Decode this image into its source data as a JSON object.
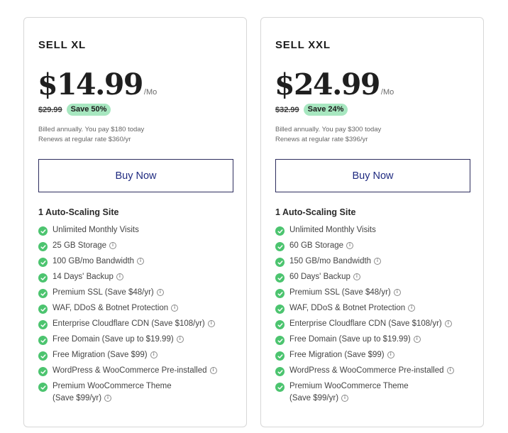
{
  "colors": {
    "accent_check": "#4cc46f",
    "badge_bg": "#a7e7c0",
    "button_text": "#1f2a80",
    "border": "#d7d7d7"
  },
  "plans": [
    {
      "name": "SELL XL",
      "price": "$14.99",
      "per": "/Mo",
      "old_price": "$29.99",
      "badge": "Save 50%",
      "billing_line1": "Billed annually. You pay $180 today",
      "billing_line2": "Renews at regular rate $360/yr",
      "buy_label": "Buy Now",
      "features_title": "1 Auto-Scaling Site",
      "features": [
        "Unlimited Monthly Visits",
        "25 GB Storage",
        "100 GB/mo Bandwidth",
        "14 Days' Backup",
        "Premium SSL (Save $48/yr)",
        "WAF, DDoS & Botnet Protection",
        "Enterprise Cloudflare CDN (Save $108/yr)",
        "Free Domain (Save up to $19.99)",
        "Free Migration (Save $99)",
        "WordPress & WooCommerce Pre-installed",
        "Premium WooCommerce Theme"
      ],
      "last_feature_line2": "(Save $99/yr)"
    },
    {
      "name": "SELL XXL",
      "price": "$24.99",
      "per": "/Mo",
      "old_price": "$32.99",
      "badge": "Save 24%",
      "billing_line1": "Billed annually. You pay $300 today",
      "billing_line2": "Renews at regular rate $396/yr",
      "buy_label": "Buy Now",
      "features_title": "1 Auto-Scaling Site",
      "features": [
        "Unlimited Monthly Visits",
        "60 GB Storage",
        "150 GB/mo Bandwidth",
        "60 Days' Backup",
        "Premium SSL (Save $48/yr)",
        "WAF, DDoS & Botnet Protection",
        "Enterprise Cloudflare CDN (Save $108/yr)",
        "Free Domain (Save up to $19.99)",
        "Free Migration (Save $99)",
        "WordPress & WooCommerce Pre-installed",
        "Premium WooCommerce Theme"
      ],
      "last_feature_line2": "(Save $99/yr)"
    }
  ]
}
